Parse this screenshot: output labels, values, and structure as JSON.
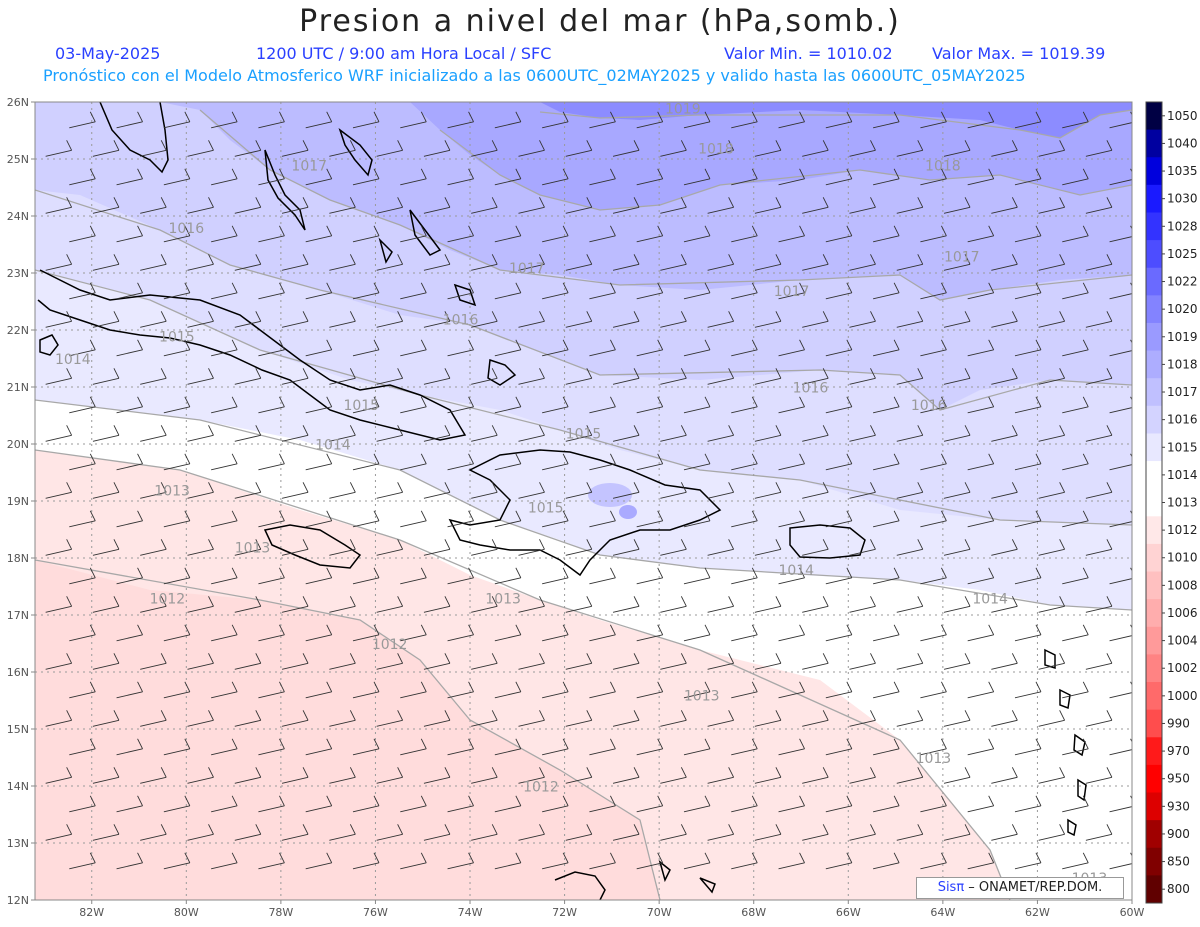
{
  "header": {
    "title": "Presion a nivel del mar (hPa,somb.)",
    "date": "03-May-2025",
    "time": "1200 UTC / 9:00 am Hora Local / SFC",
    "min_label": "Valor Min. = 1010.02",
    "max_label": "Valor Max. = 1019.39",
    "model_line": "Pronóstico con el Modelo Atmosferico WRF inicializado a las 0600UTC_02MAY2025 y valido hasta las  0600UTC_05MAY2025"
  },
  "axes": {
    "lat_labels": [
      "26N",
      "25N",
      "24N",
      "23N",
      "22N",
      "21N",
      "20N",
      "19N",
      "18N",
      "17N",
      "16N",
      "15N",
      "14N",
      "13N",
      "12N"
    ],
    "lon_labels": [
      "82W",
      "80W",
      "78W",
      "76W",
      "74W",
      "72W",
      "70W",
      "68W",
      "66W",
      "64W",
      "62W",
      "60W"
    ],
    "lat_range": [
      12,
      26
    ],
    "lon_range": [
      -83.2,
      -60
    ]
  },
  "colorbar": {
    "levels": [
      "1050",
      "1040",
      "1035",
      "1030",
      "1028",
      "1025",
      "1022",
      "1020",
      "1019",
      "1018",
      "1017",
      "1016",
      "1015",
      "1014",
      "1013",
      "1012",
      "1010",
      "1008",
      "1006",
      "1004",
      "1002",
      "1000",
      "990",
      "970",
      "950",
      "930",
      "900",
      "850",
      "800"
    ],
    "colors": [
      "#000044",
      "#0000a0",
      "#0000dd",
      "#1a1aff",
      "#3333ff",
      "#4d4dff",
      "#6a6aff",
      "#8383ff",
      "#9a9aff",
      "#adadff",
      "#c0c0ff",
      "#d3d3ff",
      "#e8e8ff",
      "#ffffff",
      "#ffffff",
      "#ffe8e8",
      "#ffd3d3",
      "#ffc0c0",
      "#ffadad",
      "#ff9a9a",
      "#ff8383",
      "#ff6a6a",
      "#ff4d4d",
      "#ff1a1a",
      "#ff0000",
      "#dd0000",
      "#a00000",
      "#800000",
      "#600000"
    ]
  },
  "isobar_labels": [
    {
      "text": "1019",
      "lon": -69.5,
      "lat": 25.8
    },
    {
      "text": "1018",
      "lon": -68.8,
      "lat": 25.1
    },
    {
      "text": "1018",
      "lon": -64.0,
      "lat": 24.8
    },
    {
      "text": "1017",
      "lon": -77.4,
      "lat": 24.8
    },
    {
      "text": "1016",
      "lon": -80.0,
      "lat": 23.7
    },
    {
      "text": "1017",
      "lon": -72.8,
      "lat": 23.0
    },
    {
      "text": "1017",
      "lon": -63.6,
      "lat": 23.2
    },
    {
      "text": "1017",
      "lon": -67.2,
      "lat": 22.6
    },
    {
      "text": "1016",
      "lon": -74.2,
      "lat": 22.1
    },
    {
      "text": "1015",
      "lon": -80.2,
      "lat": 21.8
    },
    {
      "text": "1014",
      "lon": -82.4,
      "lat": 21.4
    },
    {
      "text": "1016",
      "lon": -66.8,
      "lat": 20.9
    },
    {
      "text": "1016",
      "lon": -64.3,
      "lat": 20.6
    },
    {
      "text": "1015",
      "lon": -76.3,
      "lat": 20.6
    },
    {
      "text": "1015",
      "lon": -71.6,
      "lat": 20.1
    },
    {
      "text": "1014",
      "lon": -76.9,
      "lat": 19.9
    },
    {
      "text": "1013",
      "lon": -80.3,
      "lat": 19.1
    },
    {
      "text": "1015",
      "lon": -72.4,
      "lat": 18.8
    },
    {
      "text": "1013",
      "lon": -78.6,
      "lat": 18.1
    },
    {
      "text": "1014",
      "lon": -67.1,
      "lat": 17.7
    },
    {
      "text": "1014",
      "lon": -63.0,
      "lat": 17.2
    },
    {
      "text": "1012",
      "lon": -80.4,
      "lat": 17.2
    },
    {
      "text": "1013",
      "lon": -73.3,
      "lat": 17.2
    },
    {
      "text": "1012",
      "lon": -75.7,
      "lat": 16.4
    },
    {
      "text": "1013",
      "lon": -69.1,
      "lat": 15.5
    },
    {
      "text": "1013",
      "lon": -64.2,
      "lat": 14.4
    },
    {
      "text": "1012",
      "lon": -72.5,
      "lat": 13.9
    },
    {
      "text": "1013",
      "lon": -60.9,
      "lat": 12.3
    }
  ],
  "credit": {
    "brand": "Sisπ",
    "text": " – ONAMET/REP.DOM."
  }
}
